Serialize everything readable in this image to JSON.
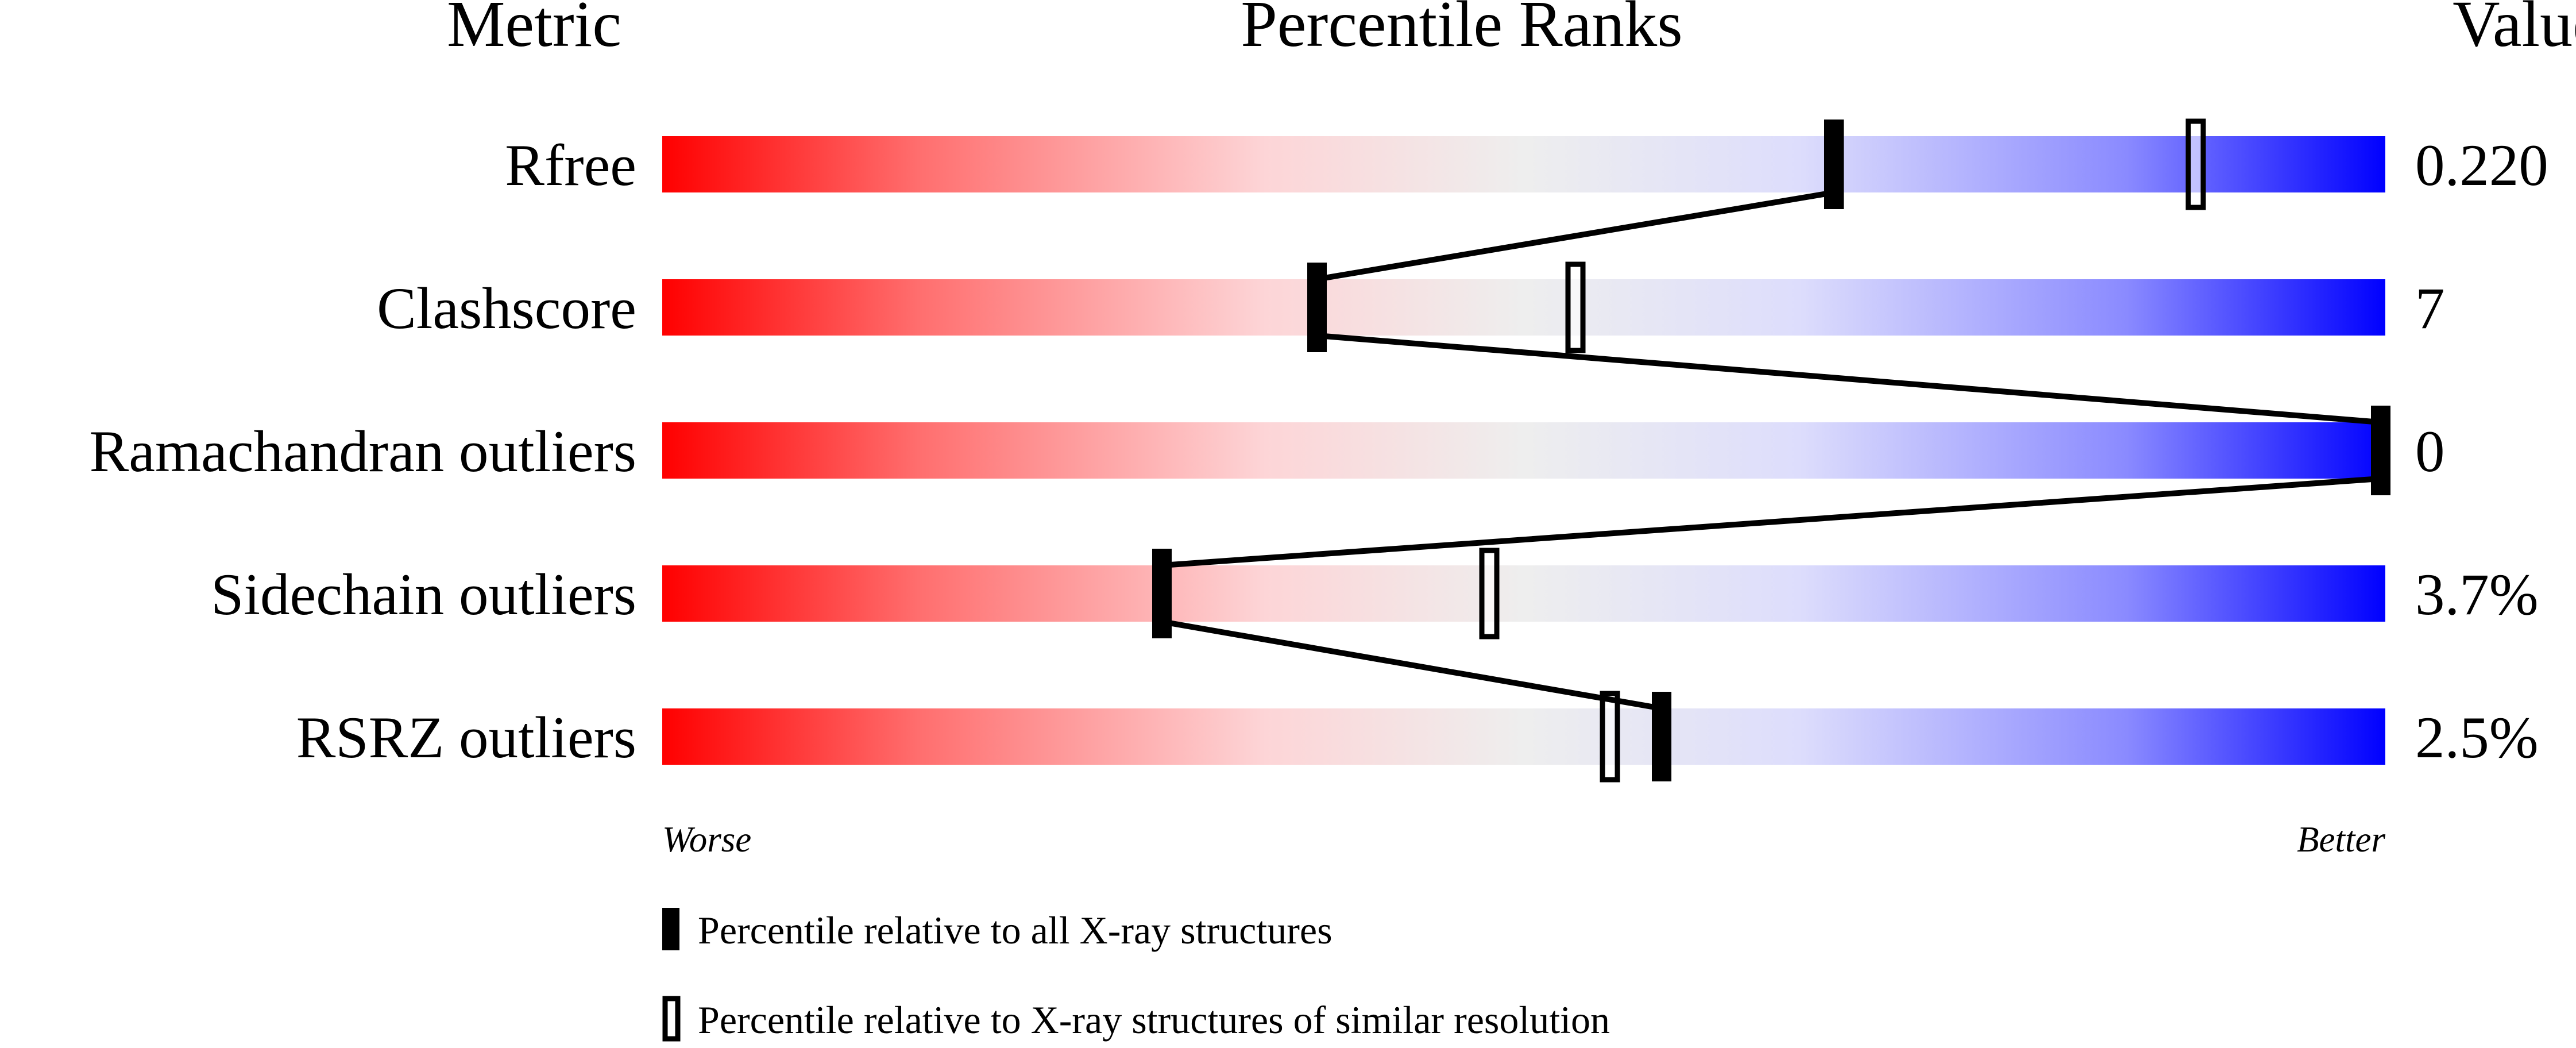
{
  "chart_data": {
    "type": "percentile-slider",
    "headers": {
      "metric": "Metric",
      "ranks": "Percentile Ranks",
      "value": "Value"
    },
    "xlim": [
      0,
      100
    ],
    "scale_labels": {
      "low": "Worse",
      "high": "Better"
    },
    "gradient_colors": [
      "#ff0000",
      "#eeeeee",
      "#0000ff"
    ],
    "rows": [
      {
        "metric": "Rfree",
        "value": "0.220",
        "percentile_all": 68,
        "percentile_similar": 89
      },
      {
        "metric": "Clashscore",
        "value": "7",
        "percentile_all": 38,
        "percentile_similar": 53
      },
      {
        "metric": "Ramachandran outliers",
        "value": "0",
        "percentile_all": 100,
        "percentile_similar": null
      },
      {
        "metric": "Sidechain outliers",
        "value": "3.7%",
        "percentile_all": 29,
        "percentile_similar": 48
      },
      {
        "metric": "RSRZ outliers",
        "value": "2.5%",
        "percentile_all": 58,
        "percentile_similar": 55
      }
    ],
    "legend": [
      {
        "marker": "filled",
        "label": "Percentile relative to all X-ray structures"
      },
      {
        "marker": "open",
        "label": "Percentile relative to X-ray structures of similar resolution"
      }
    ]
  }
}
